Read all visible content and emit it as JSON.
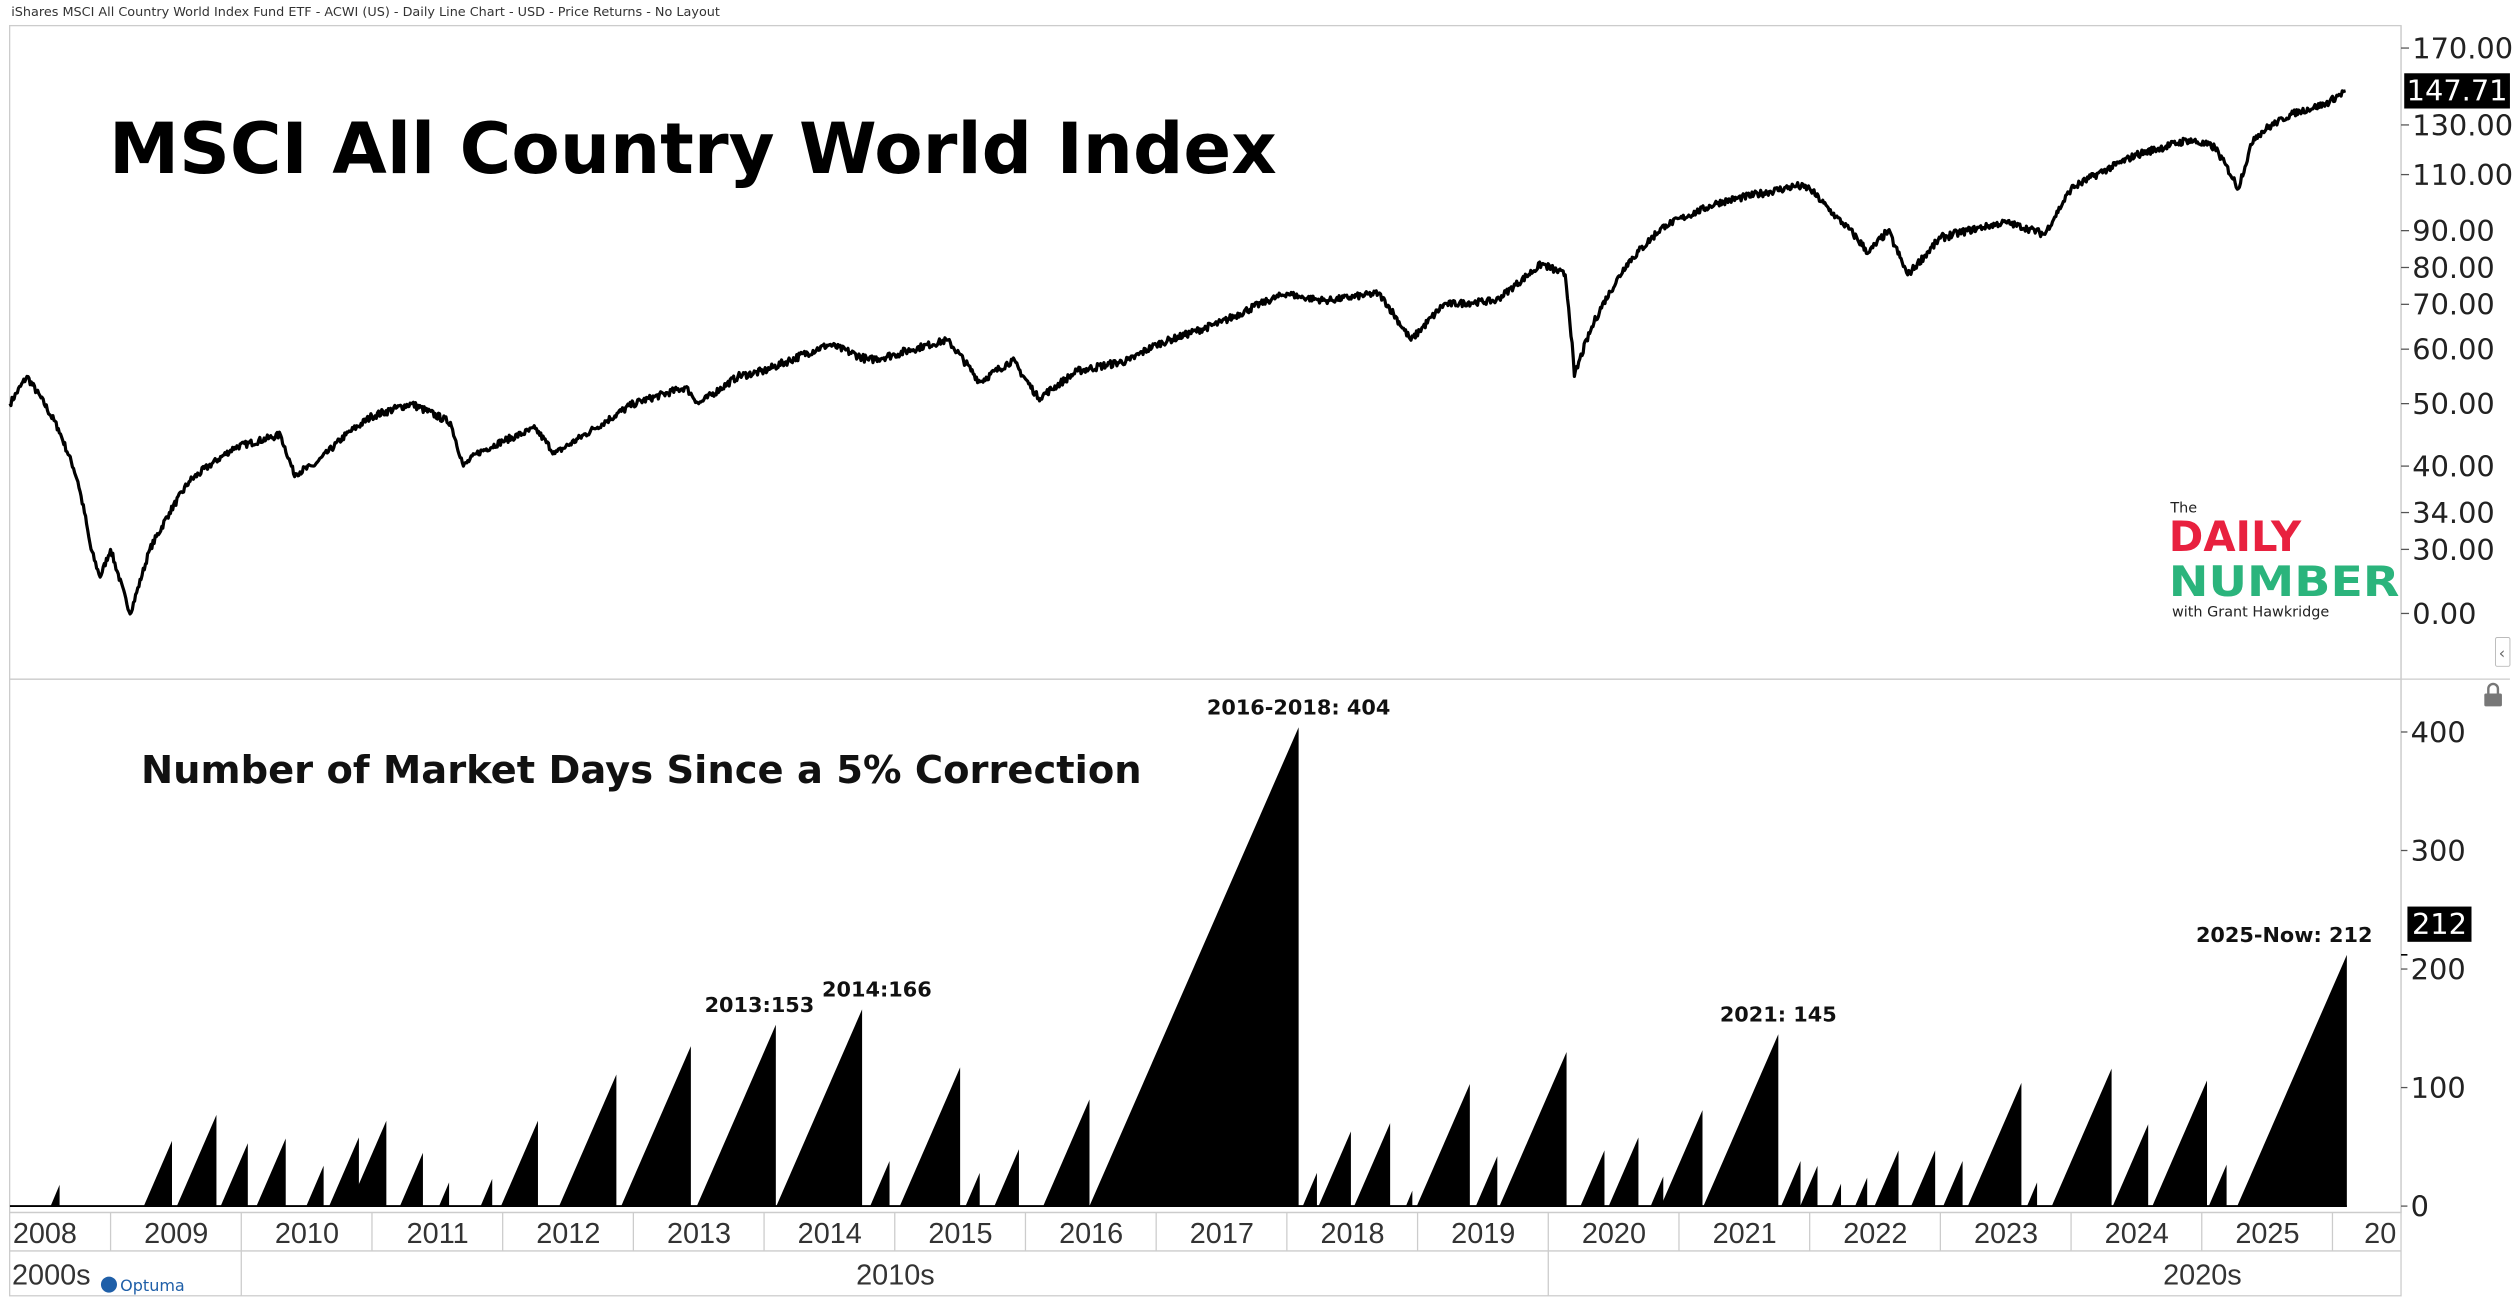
{
  "header": {
    "title": "iShares MSCI All Country World Index Fund ETF - ACWI (US) - Daily Line Chart - USD - Price Returns - No Layout"
  },
  "branding": {
    "logo_small": "The",
    "logo_word1": "DAILY",
    "logo_word2": "NUMBER",
    "logo_sub": "with Grant Hawkridge",
    "vendor": "Optuma"
  },
  "colors": {
    "line": "#000000",
    "fill": "#000000",
    "logo_red": "#e8213f",
    "logo_green": "#2bb47c",
    "badge_bg": "#000000"
  },
  "icons": {
    "collapse": "chevron-left-icon",
    "lock": "lock-icon"
  },
  "chart_data": [
    {
      "type": "line",
      "title": "MSCI All Country World Index",
      "scale": "log-like (nonlinear)",
      "last_value": "147.71",
      "y_ticks": [
        {
          "label": "170.00",
          "value": 170
        },
        {
          "label": "130.00",
          "value": 130
        },
        {
          "label": "110.00",
          "value": 110
        },
        {
          "label": "90.00",
          "value": 90
        },
        {
          "label": "80.00",
          "value": 80
        },
        {
          "label": "70.00",
          "value": 70
        },
        {
          "label": "60.00",
          "value": 60
        },
        {
          "label": "50.00",
          "value": 50
        },
        {
          "label": "40.00",
          "value": 40
        },
        {
          "label": "34.00",
          "value": 34
        },
        {
          "label": "30.00",
          "value": 30
        },
        {
          "label": "0.00",
          "value": null
        }
      ],
      "points": [
        [
          2008.23,
          50
        ],
        [
          2008.36,
          55
        ],
        [
          2008.6,
          46
        ],
        [
          2008.75,
          38
        ],
        [
          2008.85,
          30
        ],
        [
          2008.92,
          27
        ],
        [
          2009.0,
          30
        ],
        [
          2009.15,
          23
        ],
        [
          2009.3,
          30
        ],
        [
          2009.45,
          34
        ],
        [
          2009.6,
          38
        ],
        [
          2009.75,
          40
        ],
        [
          2009.95,
          43
        ],
        [
          2010.3,
          45
        ],
        [
          2010.4,
          39
        ],
        [
          2010.55,
          40
        ],
        [
          2010.8,
          45
        ],
        [
          2011.0,
          48
        ],
        [
          2011.3,
          50
        ],
        [
          2011.6,
          47
        ],
        [
          2011.7,
          40
        ],
        [
          2011.8,
          42
        ],
        [
          2012.0,
          44
        ],
        [
          2012.25,
          46
        ],
        [
          2012.4,
          42
        ],
        [
          2012.7,
          46
        ],
        [
          2013.0,
          50
        ],
        [
          2013.4,
          53
        ],
        [
          2013.5,
          50
        ],
        [
          2013.8,
          55
        ],
        [
          2014.0,
          56
        ],
        [
          2014.5,
          61
        ],
        [
          2014.8,
          58
        ],
        [
          2015.0,
          59
        ],
        [
          2015.4,
          62
        ],
        [
          2015.65,
          54
        ],
        [
          2015.9,
          58
        ],
        [
          2016.1,
          51
        ],
        [
          2016.4,
          56
        ],
        [
          2016.8,
          58
        ],
        [
          2017.0,
          61
        ],
        [
          2017.5,
          66
        ],
        [
          2018.0,
          73
        ],
        [
          2018.1,
          72
        ],
        [
          2018.3,
          71
        ],
        [
          2018.7,
          73
        ],
        [
          2018.95,
          62
        ],
        [
          2019.2,
          70
        ],
        [
          2019.6,
          71
        ],
        [
          2019.95,
          81
        ],
        [
          2020.13,
          78
        ],
        [
          2020.2,
          55
        ],
        [
          2020.35,
          66
        ],
        [
          2020.6,
          81
        ],
        [
          2020.9,
          92
        ],
        [
          2021.3,
          100
        ],
        [
          2021.9,
          106
        ],
        [
          2022.0,
          105
        ],
        [
          2022.2,
          95
        ],
        [
          2022.45,
          84
        ],
        [
          2022.6,
          90
        ],
        [
          2022.75,
          78
        ],
        [
          2023.0,
          88
        ],
        [
          2023.5,
          93
        ],
        [
          2023.8,
          89
        ],
        [
          2024.0,
          105
        ],
        [
          2024.5,
          118
        ],
        [
          2024.9,
          124
        ],
        [
          2025.1,
          121
        ],
        [
          2025.28,
          105
        ],
        [
          2025.4,
          125
        ],
        [
          2025.7,
          136
        ],
        [
          2025.95,
          141
        ],
        [
          2026.1,
          147.71
        ]
      ]
    },
    {
      "type": "area",
      "title": "Number of Market Days Since a 5% Correction",
      "ylim": [
        0,
        430
      ],
      "y_ticks": [
        "0",
        "100",
        "200",
        "300",
        "400"
      ],
      "last_value": "212",
      "cycles_end_year_and_peak_days": [
        [
          2008.61,
          18
        ],
        [
          2009.47,
          55
        ],
        [
          2009.81,
          77
        ],
        [
          2010.05,
          53
        ],
        [
          2010.34,
          57
        ],
        [
          2010.63,
          34
        ],
        [
          2010.9,
          58
        ],
        [
          2011.11,
          72
        ],
        [
          2011.39,
          45
        ],
        [
          2011.59,
          20
        ],
        [
          2011.92,
          23
        ],
        [
          2012.27,
          72
        ],
        [
          2012.87,
          111
        ],
        [
          2013.44,
          135
        ],
        [
          2014.09,
          153
        ],
        [
          2014.75,
          166
        ],
        [
          2014.96,
          38
        ],
        [
          2015.5,
          117
        ],
        [
          2015.65,
          28
        ],
        [
          2015.95,
          48
        ],
        [
          2016.49,
          90
        ],
        [
          2018.09,
          404
        ],
        [
          2018.23,
          28
        ],
        [
          2018.49,
          63
        ],
        [
          2018.79,
          70
        ],
        [
          2018.96,
          13
        ],
        [
          2019.4,
          103
        ],
        [
          2019.61,
          42
        ],
        [
          2020.14,
          130
        ],
        [
          2020.43,
          47
        ],
        [
          2020.69,
          58
        ],
        [
          2020.88,
          25
        ],
        [
          2021.18,
          81
        ],
        [
          2021.76,
          145
        ],
        [
          2021.93,
          38
        ],
        [
          2022.06,
          34
        ],
        [
          2022.24,
          19
        ],
        [
          2022.44,
          24
        ],
        [
          2022.68,
          47
        ],
        [
          2022.96,
          47
        ],
        [
          2023.17,
          38
        ],
        [
          2023.62,
          104
        ],
        [
          2023.74,
          20
        ],
        [
          2024.31,
          116
        ],
        [
          2024.59,
          69
        ],
        [
          2025.04,
          106
        ],
        [
          2025.19,
          35
        ],
        [
          2026.11,
          212
        ]
      ],
      "annotations": [
        {
          "text": "2013:153",
          "year": 2014.09,
          "value": 153
        },
        {
          "text": "2014:166",
          "year": 2014.75,
          "value": 166
        },
        {
          "text": "2016-2018: 404",
          "year": 2018.09,
          "value": 404
        },
        {
          "text": "2021: 145",
          "year": 2021.76,
          "value": 145
        },
        {
          "text": "2025-Now: 212",
          "year": 2026.11,
          "value": 212
        }
      ]
    }
  ],
  "x_axis": {
    "years": [
      "2008",
      "2009",
      "2010",
      "2011",
      "2012",
      "2013",
      "2014",
      "2015",
      "2016",
      "2017",
      "2018",
      "2019",
      "2020",
      "2021",
      "2022",
      "2023",
      "2024",
      "2025",
      "20"
    ],
    "decades": [
      "2000s",
      "2010s",
      "2020s"
    ]
  }
}
